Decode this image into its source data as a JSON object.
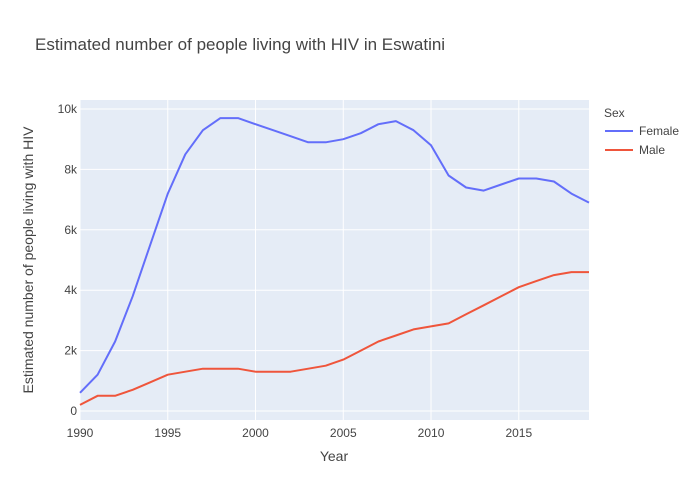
{
  "chart_data": {
    "type": "line",
    "title": "Estimated number of people living with HIV in Eswatini",
    "xlabel": "Year",
    "ylabel": "Estimated number of people living with HIV",
    "xlim": [
      1990,
      2019
    ],
    "ylim": [
      -300,
      10300
    ],
    "x_ticks": [
      1990,
      1995,
      2000,
      2005,
      2010,
      2015
    ],
    "x_tick_labels": [
      "1990",
      "1995",
      "2000",
      "2005",
      "2010",
      "2015"
    ],
    "y_ticks": [
      0,
      2000,
      4000,
      6000,
      8000,
      10000
    ],
    "y_tick_labels": [
      "0",
      "2k",
      "4k",
      "6k",
      "8k",
      "10k"
    ],
    "grid": true,
    "legend": {
      "title": "Sex",
      "placement": "right"
    },
    "x": [
      1990,
      1991,
      1992,
      1993,
      1994,
      1995,
      1996,
      1997,
      1998,
      1999,
      2000,
      2001,
      2002,
      2003,
      2004,
      2005,
      2006,
      2007,
      2008,
      2009,
      2010,
      2011,
      2012,
      2013,
      2014,
      2015,
      2016,
      2017,
      2018,
      2019
    ],
    "series": [
      {
        "name": "Female",
        "color": "#636efa",
        "values": [
          600,
          1200,
          2300,
          3800,
          5500,
          7200,
          8500,
          9300,
          9700,
          9700,
          9500,
          9300,
          9100,
          8900,
          8900,
          9000,
          9200,
          9500,
          9600,
          9300,
          8800,
          7800,
          7400,
          7300,
          7500,
          7700,
          7700,
          7600,
          7200,
          6900
        ]
      },
      {
        "name": "Male",
        "color": "#ef553b",
        "values": [
          200,
          500,
          500,
          700,
          950,
          1200,
          1300,
          1400,
          1400,
          1400,
          1300,
          1300,
          1300,
          1400,
          1500,
          1700,
          2000,
          2300,
          2500,
          2700,
          2800,
          2900,
          3200,
          3500,
          3800,
          4100,
          4300,
          4500,
          4600,
          4600
        ]
      }
    ]
  },
  "colors": {
    "plot_background": "#e5ecf6",
    "grid": "#ffffff",
    "text": "#444444"
  }
}
